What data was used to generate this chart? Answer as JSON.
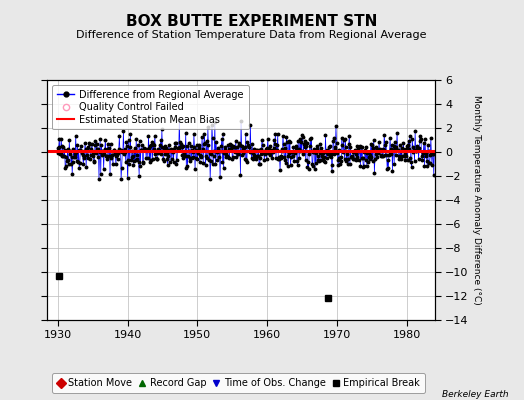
{
  "title": "BOX BUTTE EXPERIMENT STN",
  "subtitle": "Difference of Station Temperature Data from Regional Average",
  "ylabel_right": "Monthly Temperature Anomaly Difference (°C)",
  "xlim": [
    1928.5,
    1984.0
  ],
  "ylim": [
    -14,
    6
  ],
  "yticks": [
    -14,
    -12,
    -10,
    -8,
    -6,
    -4,
    -2,
    0,
    2,
    4,
    6
  ],
  "xticks": [
    1930,
    1940,
    1950,
    1960,
    1970,
    1980
  ],
  "main_line_color": "#0000FF",
  "dot_color": "#000000",
  "bias_line_color": "#FF0000",
  "bias_value": 0.1,
  "background_color": "#e8e8e8",
  "plot_bg_color": "#ffffff",
  "grid_color": "#bbbbbb",
  "outlier1_x": 1930.25,
  "outlier1_y": -10.3,
  "outlier2_x": 1968.75,
  "outlier2_y": -12.2,
  "legend1_items": [
    {
      "label": "Difference from Regional Average"
    },
    {
      "label": "Quality Control Failed"
    },
    {
      "label": "Estimated Station Mean Bias"
    }
  ],
  "legend2_items": [
    {
      "label": "Station Move",
      "color": "#CC0000",
      "marker": "D"
    },
    {
      "label": "Record Gap",
      "color": "#006600",
      "marker": "^"
    },
    {
      "label": "Time of Obs. Change",
      "color": "#0000CC",
      "marker": "v"
    },
    {
      "label": "Empirical Break",
      "color": "#000000",
      "marker": "s"
    }
  ],
  "watermark": "Berkeley Earth",
  "seed": 42,
  "title_fontsize": 11,
  "subtitle_fontsize": 8,
  "tick_fontsize": 8,
  "legend_fontsize": 7
}
